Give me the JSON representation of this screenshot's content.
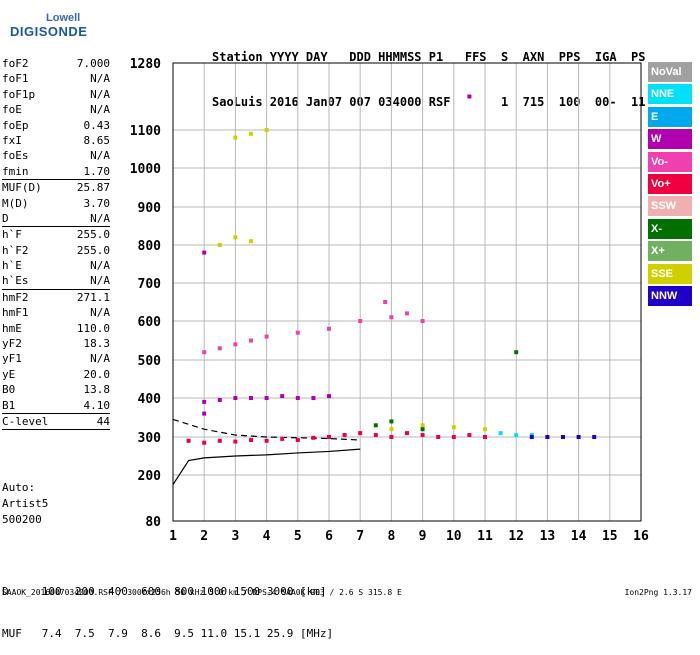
{
  "logo": {
    "line1": "Lowell",
    "line2": "DIGISONDE"
  },
  "header": {
    "line1": "Station YYYY DAY   DDD HHMMSS P1   FFS  S  AXN  PPS  IGA  PS",
    "line2": "SaoLuis 2016 Jan07 007 034000 RSF       1  715  100  00-  11"
  },
  "params": [
    {
      "label": "foF2",
      "value": "7.000"
    },
    {
      "label": "foF1",
      "value": "N/A"
    },
    {
      "label": "foF1p",
      "value": "N/A"
    },
    {
      "label": "foE",
      "value": "N/A"
    },
    {
      "label": "foEp",
      "value": "0.43"
    },
    {
      "label": "fxI",
      "value": "8.65"
    },
    {
      "label": "foEs",
      "value": "N/A"
    },
    {
      "label": "fmin",
      "value": "1.70"
    },
    {
      "sep": true
    },
    {
      "label": "MUF(D)",
      "value": "25.87"
    },
    {
      "label": "M(D)",
      "value": "3.70"
    },
    {
      "label": "D",
      "value": "N/A"
    },
    {
      "sep": true
    },
    {
      "label": "h`F",
      "value": "255.0"
    },
    {
      "label": "h`F2",
      "value": "255.0"
    },
    {
      "label": "h`E",
      "value": "N/A"
    },
    {
      "label": "h`Es",
      "value": "N/A"
    },
    {
      "sep": true
    },
    {
      "label": "hmF2",
      "value": "271.1"
    },
    {
      "label": "hmF1",
      "value": "N/A"
    },
    {
      "label": "hmE",
      "value": "110.0"
    },
    {
      "label": "yF2",
      "value": "18.3"
    },
    {
      "label": "yF1",
      "value": "N/A"
    },
    {
      "label": "yE",
      "value": "20.0"
    },
    {
      "label": "B0",
      "value": "13.8"
    },
    {
      "label": "B1",
      "value": "4.10"
    },
    {
      "sep": true
    },
    {
      "label": "C-level",
      "value": "44"
    },
    {
      "sep": true
    }
  ],
  "auto": {
    "line1": "Auto:",
    "line2": "Artist5",
    "line3": "500200"
  },
  "bottom": {
    "line1": "D     100  200  400  600  800 1000 1500 3000 [km]",
    "line2": "MUF   7.4  7.5  7.9  8.6  9.5 11.0 15.1 25.9 [MHz]"
  },
  "footer": {
    "left": "SAAOK_2016007034000.RSF / 300fx256h 50 kHz 5.0 km / DPS-4 SAA0K 903 / 2.6 S 315.8 E",
    "right": "Ion2Png 1.3.17"
  },
  "legend": [
    {
      "label": "NoVal",
      "color": "#a0a0a0"
    },
    {
      "label": "NNE",
      "color": "#00e0f8"
    },
    {
      "label": "E",
      "color": "#00a8f0"
    },
    {
      "label": "W",
      "color": "#b000b0"
    },
    {
      "label": "Vo-",
      "color": "#f040b0"
    },
    {
      "label": "Vo+",
      "color": "#f00040"
    },
    {
      "label": "SSW",
      "color": "#f0b0b0"
    },
    {
      "label": "X-",
      "color": "#007000"
    },
    {
      "label": "X+",
      "color": "#70b060"
    },
    {
      "label": "SSE",
      "color": "#d0d000"
    },
    {
      "label": "NNW",
      "color": "#2000c8"
    }
  ],
  "chart_data": {
    "type": "scatter",
    "xlim": [
      1,
      16
    ],
    "ylim": [
      80,
      1280
    ],
    "x_ticks": [
      "1",
      "2",
      "3",
      "4",
      "5",
      "6",
      "7",
      "8",
      "9",
      "10",
      "11",
      "12",
      "13",
      "14",
      "15",
      "16"
    ],
    "y_ticks": [
      "80",
      "200",
      "300",
      "400",
      "500",
      "600",
      "700",
      "800",
      "900",
      "1000",
      "1100",
      "1280"
    ],
    "grid": true,
    "legend_position": "right",
    "series": [
      {
        "name": "Vo+",
        "points": [
          [
            1.5,
            290
          ],
          [
            2,
            285
          ],
          [
            2.5,
            290
          ],
          [
            3,
            288
          ],
          [
            3.5,
            292
          ],
          [
            4,
            290
          ],
          [
            4.5,
            295
          ],
          [
            5,
            292
          ],
          [
            5.5,
            298
          ],
          [
            6,
            300
          ],
          [
            6.5,
            305
          ],
          [
            7,
            310
          ],
          [
            7.5,
            305
          ],
          [
            8,
            300
          ],
          [
            8.5,
            310
          ],
          [
            9,
            305
          ],
          [
            9.5,
            300
          ],
          [
            10,
            300
          ],
          [
            10.5,
            305
          ],
          [
            11,
            300
          ]
        ]
      },
      {
        "name": "Vo-",
        "points": [
          [
            2,
            520
          ],
          [
            2.5,
            530
          ],
          [
            3,
            540
          ],
          [
            3.5,
            550
          ],
          [
            4,
            560
          ],
          [
            5,
            570
          ],
          [
            6,
            580
          ],
          [
            7,
            600
          ],
          [
            7.8,
            650
          ],
          [
            8,
            610
          ],
          [
            8.5,
            620
          ],
          [
            9,
            600
          ]
        ]
      },
      {
        "name": "W",
        "points": [
          [
            2,
            390
          ],
          [
            2.5,
            395
          ],
          [
            3,
            400
          ],
          [
            3.5,
            400
          ],
          [
            4,
            400
          ],
          [
            4.5,
            405
          ],
          [
            5,
            400
          ],
          [
            5.5,
            400
          ],
          [
            6,
            405
          ],
          [
            2,
            360
          ],
          [
            10.5,
            1190
          ],
          [
            2,
            780
          ]
        ]
      },
      {
        "name": "NNE",
        "points": [
          [
            11.5,
            310
          ],
          [
            12,
            305
          ],
          [
            12.5,
            305
          ],
          [
            13,
            300
          ],
          [
            13.5,
            300
          ]
        ]
      },
      {
        "name": "SSE",
        "points": [
          [
            8,
            320
          ],
          [
            9,
            330
          ],
          [
            10,
            325
          ],
          [
            11,
            320
          ],
          [
            3,
            1080
          ],
          [
            3.5,
            1090
          ],
          [
            4,
            1100
          ],
          [
            2.5,
            800
          ],
          [
            3,
            820
          ],
          [
            3.5,
            810
          ]
        ]
      },
      {
        "name": "X-",
        "points": [
          [
            7.5,
            330
          ],
          [
            8,
            340
          ],
          [
            9,
            320
          ],
          [
            12,
            520
          ]
        ]
      },
      {
        "name": "NNW",
        "points": [
          [
            12.5,
            300
          ],
          [
            13,
            300
          ],
          [
            13.5,
            300
          ],
          [
            14,
            300
          ],
          [
            14.5,
            300
          ]
        ]
      }
    ],
    "traces": [
      {
        "name": "dashed",
        "points": [
          [
            1,
            345
          ],
          [
            2,
            320
          ],
          [
            3,
            305
          ],
          [
            4,
            300
          ],
          [
            5,
            298
          ],
          [
            6,
            296
          ],
          [
            7,
            292
          ]
        ]
      },
      {
        "name": "solid",
        "points": [
          [
            1,
            175
          ],
          [
            1.5,
            238
          ],
          [
            2,
            245
          ],
          [
            3,
            250
          ],
          [
            4,
            253
          ],
          [
            5,
            258
          ],
          [
            6,
            262
          ],
          [
            7,
            268
          ]
        ]
      }
    ]
  }
}
